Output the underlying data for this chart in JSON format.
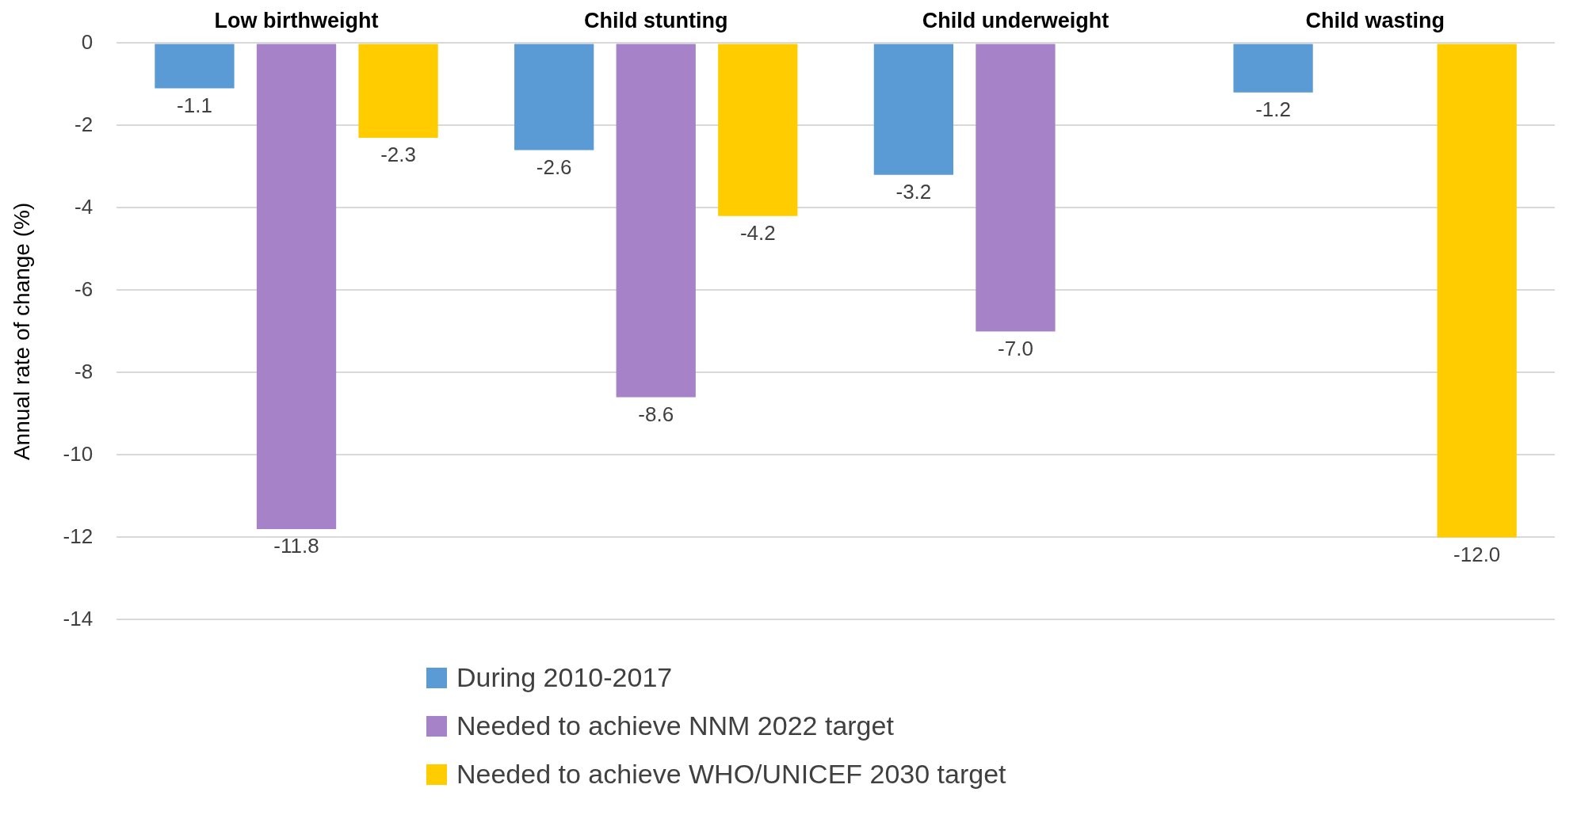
{
  "chart_data": {
    "type": "bar",
    "ylabel": "Annual rate of change (%)",
    "categories": [
      "Low birthweight",
      "Child stunting",
      "Child underweight",
      "Child wasting"
    ],
    "series": [
      {
        "name": "During 2010-2017",
        "color": "#5b9bd5",
        "values": [
          -1.1,
          -2.6,
          -3.2,
          -1.2
        ],
        "value_labels": [
          "-1.1",
          "-2.6",
          "-3.2",
          "-1.2"
        ]
      },
      {
        "name": "Needed to achieve NNM 2022 target",
        "color": "#a682c8",
        "values": [
          -11.8,
          -8.6,
          -7.0,
          null
        ],
        "value_labels": [
          "-11.8",
          "-8.6",
          "-7.0",
          null
        ]
      },
      {
        "name": "Needed to achieve WHO/UNICEF 2030 target",
        "color": "#ffcc00",
        "values": [
          -2.3,
          -4.2,
          null,
          -12.0
        ],
        "value_labels": [
          "-2.3",
          "-4.2",
          null,
          "-12.0"
        ]
      }
    ],
    "ylim": [
      -14,
      0
    ],
    "yticks": [
      -14,
      -12,
      -10,
      -8,
      -6,
      -4,
      -2,
      0
    ],
    "grid": "y",
    "legend": "bottom"
  }
}
